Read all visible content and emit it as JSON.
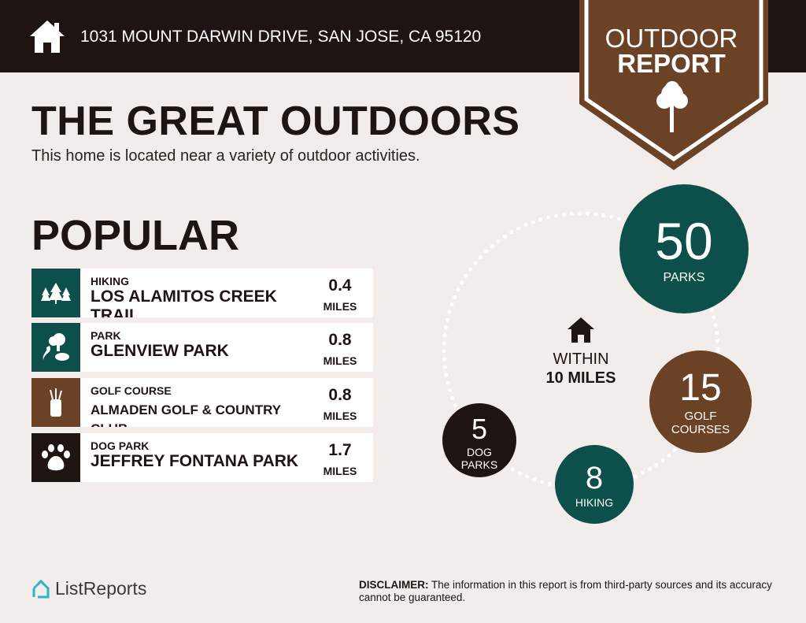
{
  "header": {
    "address": "1031 MOUNT DARWIN DRIVE, SAN JOSE, CA 95120",
    "icon": "home-icon"
  },
  "badge": {
    "line1": "OUTDOOR",
    "line2": "REPORT",
    "icon": "tree-icon"
  },
  "title": "THE GREAT OUTDOORS",
  "subtitle": "This home is located near a variety of outdoor activities.",
  "popular": {
    "heading": "POPULAR",
    "items": [
      {
        "category": "HIKING",
        "name": "LOS ALAMITOS CREEK TRAIL",
        "distance": "0.4",
        "unit": "MILES",
        "icon": "trees-icon",
        "color": "#0d4f4b"
      },
      {
        "category": "PARK",
        "name": "GLENVIEW PARK",
        "distance": "0.8",
        "unit": "MILES",
        "icon": "park-icon",
        "color": "#0d4f4b"
      },
      {
        "category": "GOLF COURSE",
        "name": "ALMADEN GOLF & COUNTRY CLUB",
        "distance": "0.8",
        "unit": "MILES",
        "icon": "golf-bag-icon",
        "color": "#6b4226"
      },
      {
        "category": "DOG PARK",
        "name": "JEFFREY FONTANA PARK",
        "distance": "1.7",
        "unit": "MILES",
        "icon": "paw-icon",
        "color": "#1e1412"
      }
    ]
  },
  "summary": {
    "within1": "WITHIN",
    "within2": "10 MILES",
    "parks": {
      "count": "50",
      "label": "PARKS"
    },
    "golf": {
      "count": "15",
      "label1": "GOLF",
      "label2": "COURSES"
    },
    "hiking": {
      "count": "8",
      "label": "HIKING"
    },
    "dog": {
      "count": "5",
      "label1": "DOG",
      "label2": "PARKS"
    }
  },
  "footer": {
    "brand": "ListReports",
    "disclaimer_label": "DISCLAIMER:",
    "disclaimer": " The information in this report is from third-party sources and its accuracy cannot be guaranteed."
  },
  "colors": {
    "dark": "#1e1412",
    "teal": "#0d4f4b",
    "brown": "#6b4226",
    "bg": "#f2ecea"
  }
}
